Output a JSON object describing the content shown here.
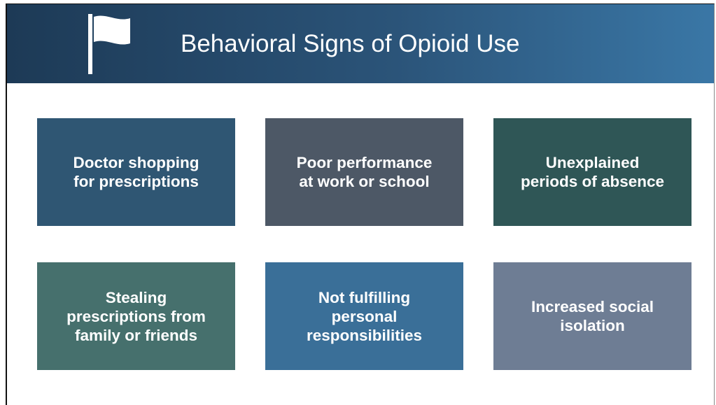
{
  "header": {
    "title": "Behavioral Signs of Opioid Use"
  },
  "cards": [
    {
      "lines": [
        "Doctor shopping",
        "for prescriptions"
      ]
    },
    {
      "lines": [
        "Poor performance",
        "at work or school"
      ]
    },
    {
      "lines": [
        "Unexplained",
        "periods of absence"
      ]
    },
    {
      "lines": [
        "Stealing",
        "prescriptions from",
        "family or friends"
      ]
    },
    {
      "lines": [
        "Not fulfilling",
        "personal",
        "responsibilities"
      ]
    },
    {
      "lines": [
        "Increased social",
        "isolation"
      ]
    }
  ]
}
